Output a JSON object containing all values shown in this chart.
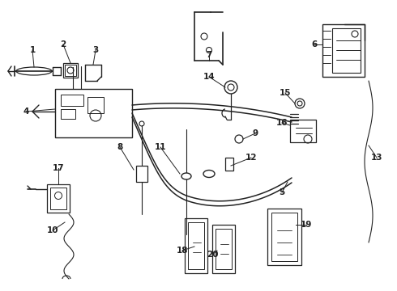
{
  "bg_color": "#ffffff",
  "line_color": "#222222",
  "figsize": [
    4.9,
    3.6
  ],
  "dpi": 100
}
